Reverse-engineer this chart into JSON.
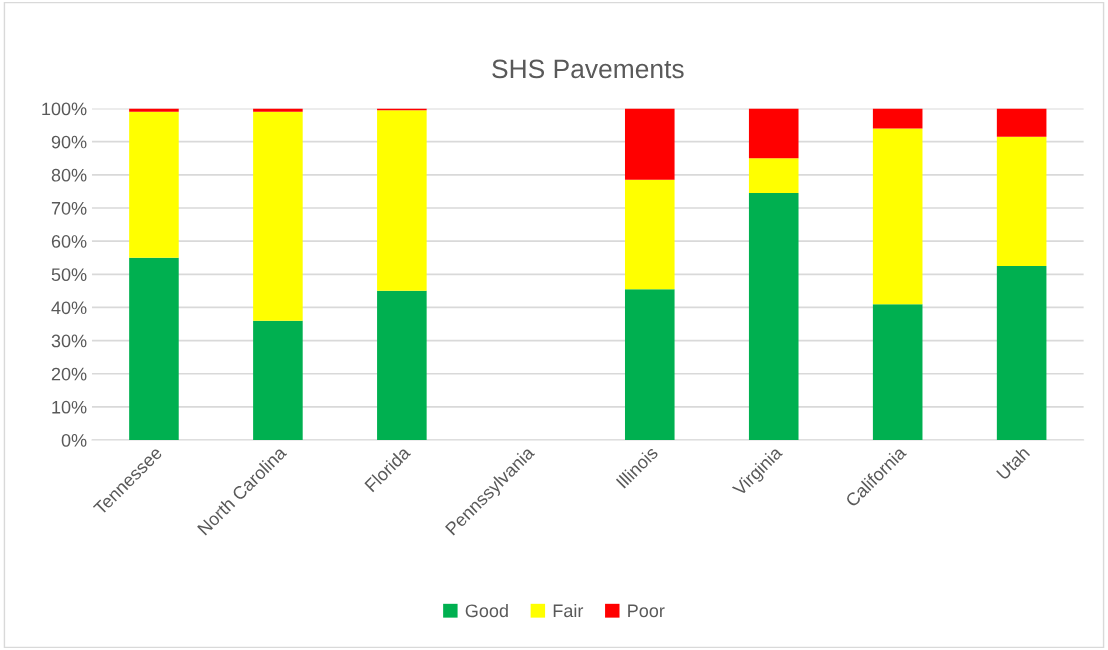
{
  "chart_data": {
    "type": "bar",
    "title": "SHS Pavements",
    "stacked": true,
    "categories": [
      "Tennessee",
      "North Carolina",
      "Florida",
      "Pennssylvania",
      "Illinois",
      "Virginia",
      "California",
      "Utah"
    ],
    "series": [
      {
        "name": "Good",
        "color": "#00b050",
        "values": [
          55,
          36,
          45,
          null,
          45.5,
          74.5,
          41,
          52.5
        ]
      },
      {
        "name": "Fair",
        "color": "#ffff00",
        "values": [
          44,
          63,
          54.5,
          null,
          33,
          10.5,
          53,
          39
        ]
      },
      {
        "name": "Poor",
        "color": "#ff0000",
        "values": [
          1,
          1,
          0.5,
          null,
          21.5,
          15,
          6,
          8.5
        ]
      }
    ],
    "ylim": [
      0,
      100
    ],
    "yticks": [
      {
        "value": 0,
        "label": "0%"
      },
      {
        "value": 10,
        "label": "10%"
      },
      {
        "value": 20,
        "label": "20%"
      },
      {
        "value": 30,
        "label": "30%"
      },
      {
        "value": 40,
        "label": "40%"
      },
      {
        "value": 50,
        "label": "50%"
      },
      {
        "value": 60,
        "label": "60%"
      },
      {
        "value": 70,
        "label": "70%"
      },
      {
        "value": 80,
        "label": "80%"
      },
      {
        "value": 90,
        "label": "90%"
      },
      {
        "value": 100,
        "label": "100%"
      }
    ],
    "grid": "y",
    "legend": "bottom"
  }
}
